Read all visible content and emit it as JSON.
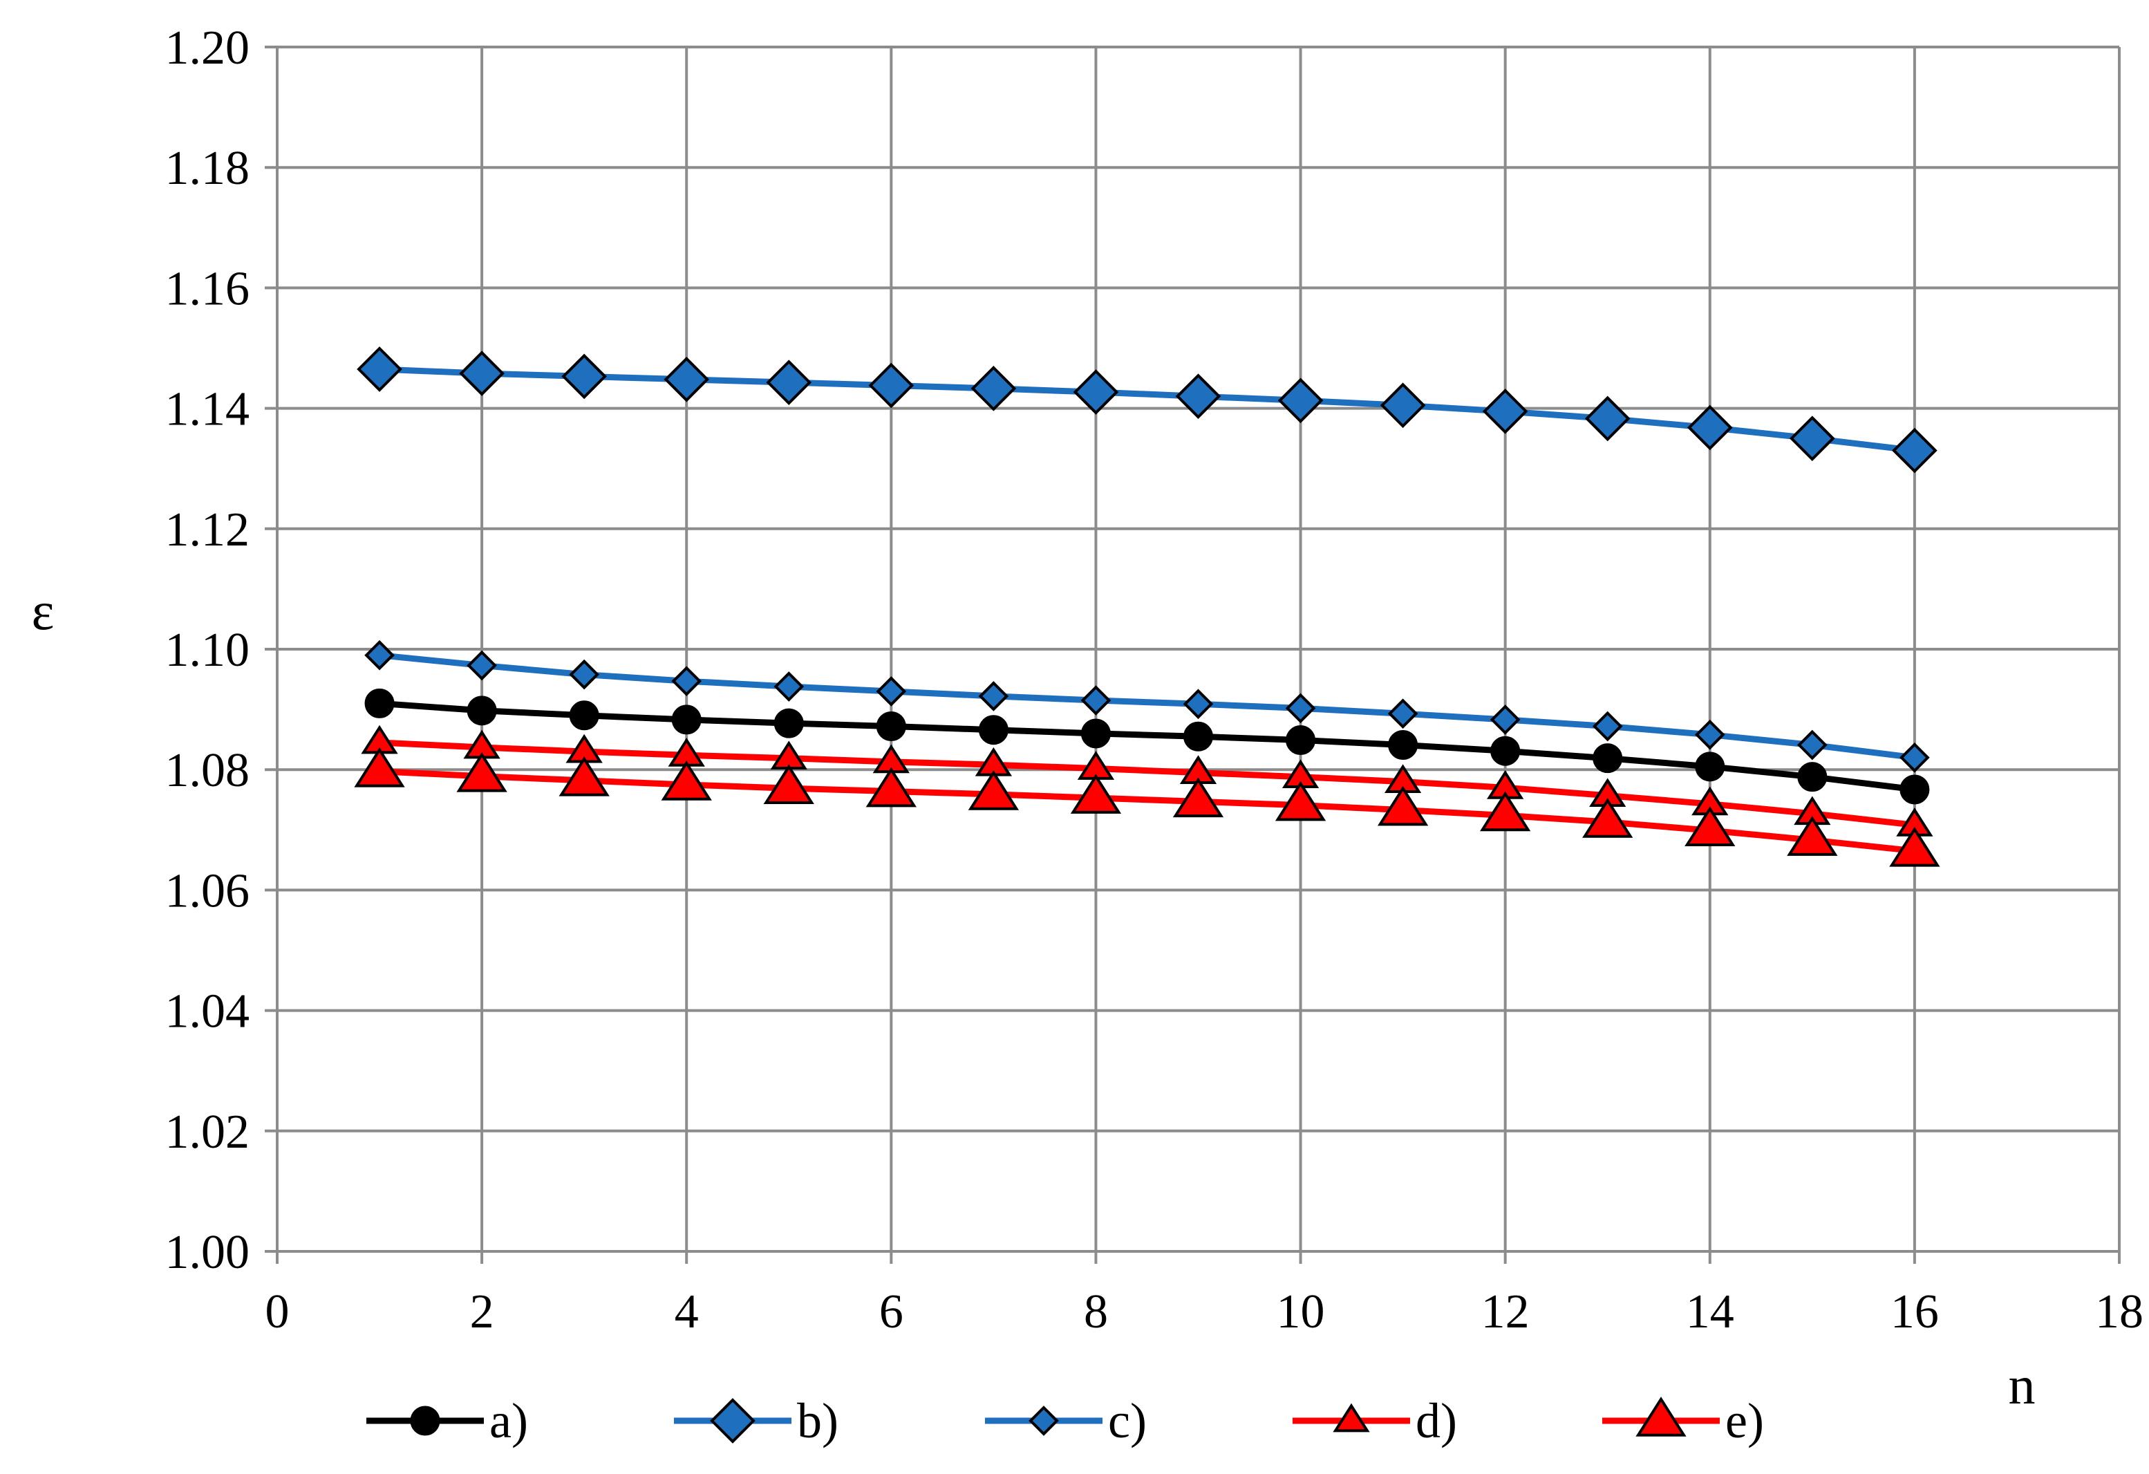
{
  "chart_data": {
    "type": "line",
    "xlabel": "n",
    "ylabel": "ε",
    "xlim": [
      0,
      18
    ],
    "ylim": [
      1.0,
      1.2
    ],
    "xticks": [
      "0",
      "2",
      "4",
      "6",
      "8",
      "10",
      "12",
      "14",
      "16",
      "18"
    ],
    "yticks": [
      "1.00",
      "1.02",
      "1.04",
      "1.06",
      "1.08",
      "1.10",
      "1.12",
      "1.14",
      "1.16",
      "1.18",
      "1.20"
    ],
    "grid": true,
    "legend_position": "bottom",
    "x": [
      1,
      2,
      3,
      4,
      5,
      6,
      7,
      8,
      9,
      10,
      11,
      12,
      13,
      14,
      15,
      16
    ],
    "series": [
      {
        "name": "a)",
        "color": "#000000",
        "marker": "circle",
        "marker_color": "#000000",
        "values": [
          1.091,
          1.0898,
          1.089,
          1.0883,
          1.0877,
          1.0872,
          1.0866,
          1.086,
          1.0855,
          1.0849,
          1.0841,
          1.0831,
          1.0819,
          1.0805,
          1.0788,
          1.0767
        ]
      },
      {
        "name": "b)",
        "color": "#1f6fbf",
        "marker": "diamond-large",
        "marker_color": "#1f6fbf",
        "values": [
          1.1465,
          1.1458,
          1.1453,
          1.1448,
          1.1443,
          1.1438,
          1.1433,
          1.1427,
          1.142,
          1.1413,
          1.1405,
          1.1395,
          1.1383,
          1.1368,
          1.135,
          1.133
        ]
      },
      {
        "name": "c)",
        "color": "#1f6fbf",
        "marker": "diamond-small",
        "marker_color": "#1f6fbf",
        "values": [
          1.099,
          1.0973,
          1.0958,
          1.0947,
          1.0938,
          1.093,
          1.0922,
          1.0915,
          1.0909,
          1.0902,
          1.0893,
          1.0883,
          1.0872,
          1.0858,
          1.0841,
          1.082
        ]
      },
      {
        "name": "d)",
        "color": "#ff0000",
        "marker": "triangle-small",
        "marker_color": "#ff0000",
        "values": [
          1.0845,
          1.0837,
          1.083,
          1.0824,
          1.0819,
          1.0813,
          1.0808,
          1.0802,
          1.0795,
          1.0788,
          1.078,
          1.077,
          1.0757,
          1.0743,
          1.0727,
          1.0708
        ]
      },
      {
        "name": "e)",
        "color": "#ff0000",
        "marker": "triangle-large",
        "marker_color": "#ff0000",
        "values": [
          1.0797,
          1.0789,
          1.0782,
          1.0775,
          1.0769,
          1.0764,
          1.0759,
          1.0753,
          1.0747,
          1.0741,
          1.0733,
          1.0724,
          1.0713,
          1.0699,
          1.0683,
          1.0665
        ]
      }
    ]
  }
}
